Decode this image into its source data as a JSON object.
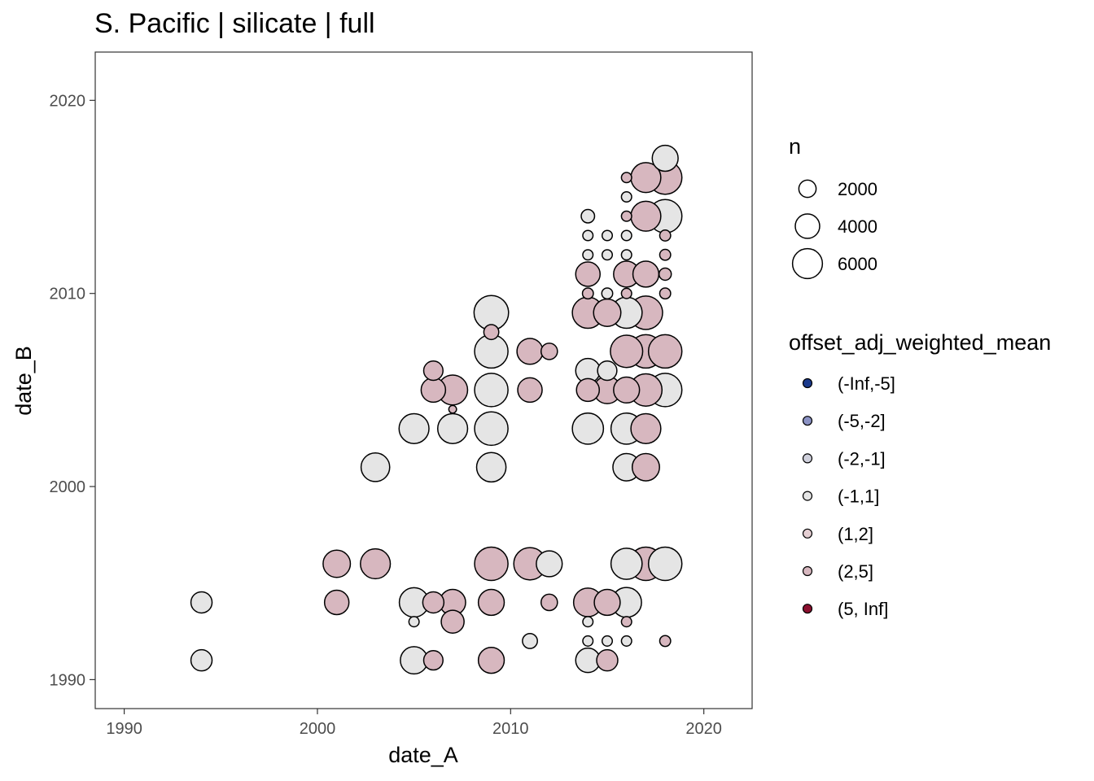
{
  "chart_data": {
    "type": "scatter",
    "title": "S. Pacific | silicate | full",
    "xlabel": "date_A",
    "ylabel": "date_B",
    "xlim": [
      1988.5,
      2022.5
    ],
    "ylim": [
      1988.5,
      2022.5
    ],
    "x_ticks": [
      1990,
      2000,
      2010,
      2020
    ],
    "y_ticks": [
      1990,
      2000,
      2010,
      2020
    ],
    "x_tick_labels": [
      "1990",
      "2000",
      "2010",
      "2020"
    ],
    "y_tick_labels": [
      "1990",
      "2000",
      "2010",
      "2020"
    ],
    "grid": false,
    "legend_size": {
      "title": "n",
      "entries": [
        {
          "label": "2000",
          "n": 2000
        },
        {
          "label": "4000",
          "n": 4000
        },
        {
          "label": "6000",
          "n": 6000
        }
      ]
    },
    "legend_color": {
      "title": "offset_adj_weighted_mean",
      "entries": [
        {
          "label": "(-Inf,-5]",
          "color": "#1b3a8c"
        },
        {
          "label": "(-5,-2]",
          "color": "#8b92c4"
        },
        {
          "label": "(-2,-1]",
          "color": "#cfd0dc"
        },
        {
          "label": "(-1,1]",
          "color": "#e5e5e5"
        },
        {
          "label": "(1,2]",
          "color": "#e5cfd3"
        },
        {
          "label": "(2,5]",
          "color": "#d7b7bf"
        },
        {
          "label": "(5, Inf]",
          "color": "#8b0f2f"
        }
      ]
    },
    "points": [
      {
        "x": 1994,
        "y": 1994,
        "n": 3000,
        "bin": "(-1,1]"
      },
      {
        "x": 1994,
        "y": 1991,
        "n": 3000,
        "bin": "(-1,1]"
      },
      {
        "x": 2001,
        "y": 1996,
        "n": 5000,
        "bin": "(2,5]"
      },
      {
        "x": 2001,
        "y": 1994,
        "n": 4000,
        "bin": "(2,5]"
      },
      {
        "x": 2003,
        "y": 1996,
        "n": 6000,
        "bin": "(2,5]"
      },
      {
        "x": 2003,
        "y": 2001,
        "n": 5500,
        "bin": "(-1,1]"
      },
      {
        "x": 2005,
        "y": 2003,
        "n": 6000,
        "bin": "(-1,1]"
      },
      {
        "x": 2005,
        "y": 1994,
        "n": 5800,
        "bin": "(-1,1]"
      },
      {
        "x": 2005,
        "y": 1993,
        "n": 700,
        "bin": "(-1,1]"
      },
      {
        "x": 2005,
        "y": 1991,
        "n": 5000,
        "bin": "(-1,1]"
      },
      {
        "x": 2006,
        "y": 2006,
        "n": 2500,
        "bin": "(2,5]"
      },
      {
        "x": 2006,
        "y": 2005,
        "n": 4000,
        "bin": "(2,5]"
      },
      {
        "x": 2006,
        "y": 1994,
        "n": 3000,
        "bin": "(2,5]"
      },
      {
        "x": 2006,
        "y": 1991,
        "n": 2500,
        "bin": "(2,5]"
      },
      {
        "x": 2007,
        "y": 2005,
        "n": 6000,
        "bin": "(2,5]"
      },
      {
        "x": 2007,
        "y": 2004,
        "n": 400,
        "bin": "(2,5]"
      },
      {
        "x": 2007,
        "y": 2003,
        "n": 6000,
        "bin": "(-1,1]"
      },
      {
        "x": 2007,
        "y": 1994,
        "n": 4500,
        "bin": "(2,5]"
      },
      {
        "x": 2007,
        "y": 1993,
        "n": 3500,
        "bin": "(2,5]"
      },
      {
        "x": 2009,
        "y": 2009,
        "n": 8000,
        "bin": "(-1,1]"
      },
      {
        "x": 2009,
        "y": 2008,
        "n": 1500,
        "bin": "(2,5]"
      },
      {
        "x": 2009,
        "y": 2007,
        "n": 7500,
        "bin": "(-1,1]"
      },
      {
        "x": 2009,
        "y": 2005,
        "n": 7500,
        "bin": "(-1,1]"
      },
      {
        "x": 2009,
        "y": 2003,
        "n": 7500,
        "bin": "(-1,1]"
      },
      {
        "x": 2009,
        "y": 2001,
        "n": 5800,
        "bin": "(-1,1]"
      },
      {
        "x": 2009,
        "y": 1996,
        "n": 7500,
        "bin": "(2,5]"
      },
      {
        "x": 2009,
        "y": 1994,
        "n": 4500,
        "bin": "(2,5]"
      },
      {
        "x": 2009,
        "y": 1991,
        "n": 4500,
        "bin": "(2,5]"
      },
      {
        "x": 2011,
        "y": 2007,
        "n": 4500,
        "bin": "(2,5]"
      },
      {
        "x": 2011,
        "y": 2005,
        "n": 4000,
        "bin": "(2,5]"
      },
      {
        "x": 2011,
        "y": 1996,
        "n": 7000,
        "bin": "(2,5]"
      },
      {
        "x": 2011,
        "y": 1992,
        "n": 1500,
        "bin": "(-1,1]"
      },
      {
        "x": 2012,
        "y": 2007,
        "n": 1800,
        "bin": "(2,5]"
      },
      {
        "x": 2012,
        "y": 1996,
        "n": 4500,
        "bin": "(-1,1]"
      },
      {
        "x": 2012,
        "y": 1994,
        "n": 1800,
        "bin": "(2,5]"
      },
      {
        "x": 2014,
        "y": 2014,
        "n": 1200,
        "bin": "(-1,1]"
      },
      {
        "x": 2014,
        "y": 2013,
        "n": 700,
        "bin": "(-1,1]"
      },
      {
        "x": 2014,
        "y": 2012,
        "n": 700,
        "bin": "(-1,1]"
      },
      {
        "x": 2014,
        "y": 2011,
        "n": 4000,
        "bin": "(2,5]"
      },
      {
        "x": 2014,
        "y": 2010,
        "n": 800,
        "bin": "(2,5]"
      },
      {
        "x": 2014,
        "y": 2009,
        "n": 6500,
        "bin": "(2,5]"
      },
      {
        "x": 2014,
        "y": 2006,
        "n": 4000,
        "bin": "(-1,1]"
      },
      {
        "x": 2014,
        "y": 2005,
        "n": 3500,
        "bin": "(2,5]"
      },
      {
        "x": 2014,
        "y": 2003,
        "n": 6500,
        "bin": "(-1,1]"
      },
      {
        "x": 2014,
        "y": 1994,
        "n": 5500,
        "bin": "(2,5]"
      },
      {
        "x": 2014,
        "y": 1993,
        "n": 700,
        "bin": "(-1,1]"
      },
      {
        "x": 2014,
        "y": 1992,
        "n": 700,
        "bin": "(-1,1]"
      },
      {
        "x": 2014,
        "y": 1991,
        "n": 4000,
        "bin": "(-1,1]"
      },
      {
        "x": 2015,
        "y": 2013,
        "n": 700,
        "bin": "(-1,1]"
      },
      {
        "x": 2015,
        "y": 2012,
        "n": 700,
        "bin": "(-1,1]"
      },
      {
        "x": 2015,
        "y": 2010,
        "n": 800,
        "bin": "(-1,1]"
      },
      {
        "x": 2015,
        "y": 2009,
        "n": 5000,
        "bin": "(2,5]"
      },
      {
        "x": 2015,
        "y": 2006,
        "n": 2500,
        "bin": "(-1,1]"
      },
      {
        "x": 2015,
        "y": 2005,
        "n": 5000,
        "bin": "(2,5]"
      },
      {
        "x": 2015,
        "y": 1994,
        "n": 4500,
        "bin": "(2,5]"
      },
      {
        "x": 2015,
        "y": 1992,
        "n": 700,
        "bin": "(-1,1]"
      },
      {
        "x": 2015,
        "y": 1991,
        "n": 3000,
        "bin": "(2,5]"
      },
      {
        "x": 2016,
        "y": 2016,
        "n": 700,
        "bin": "(2,5]"
      },
      {
        "x": 2016,
        "y": 2015,
        "n": 700,
        "bin": "(-1,1]"
      },
      {
        "x": 2016,
        "y": 2014,
        "n": 700,
        "bin": "(2,5]"
      },
      {
        "x": 2016,
        "y": 2013,
        "n": 700,
        "bin": "(-1,1]"
      },
      {
        "x": 2016,
        "y": 2012,
        "n": 700,
        "bin": "(-1,1]"
      },
      {
        "x": 2016,
        "y": 2011,
        "n": 4500,
        "bin": "(2,5]"
      },
      {
        "x": 2016,
        "y": 2010,
        "n": 700,
        "bin": "(2,5]"
      },
      {
        "x": 2016,
        "y": 2009,
        "n": 6500,
        "bin": "(-1,1]"
      },
      {
        "x": 2016,
        "y": 2007,
        "n": 7000,
        "bin": "(2,5]"
      },
      {
        "x": 2016,
        "y": 2005,
        "n": 4500,
        "bin": "(2,5]"
      },
      {
        "x": 2016,
        "y": 2003,
        "n": 6500,
        "bin": "(-1,1]"
      },
      {
        "x": 2016,
        "y": 2001,
        "n": 5000,
        "bin": "(-1,1]"
      },
      {
        "x": 2016,
        "y": 1996,
        "n": 6500,
        "bin": "(-1,1]"
      },
      {
        "x": 2016,
        "y": 1994,
        "n": 6000,
        "bin": "(-1,1]"
      },
      {
        "x": 2016,
        "y": 1993,
        "n": 700,
        "bin": "(2,5]"
      },
      {
        "x": 2016,
        "y": 1992,
        "n": 700,
        "bin": "(-1,1]"
      },
      {
        "x": 2017,
        "y": 2016,
        "n": 6000,
        "bin": "(2,5]"
      },
      {
        "x": 2017,
        "y": 2014,
        "n": 6000,
        "bin": "(2,5]"
      },
      {
        "x": 2017,
        "y": 2011,
        "n": 4500,
        "bin": "(2,5]"
      },
      {
        "x": 2017,
        "y": 2009,
        "n": 7500,
        "bin": "(2,5]"
      },
      {
        "x": 2017,
        "y": 2007,
        "n": 7500,
        "bin": "(2,5]"
      },
      {
        "x": 2017,
        "y": 2005,
        "n": 7000,
        "bin": "(2,5]"
      },
      {
        "x": 2017,
        "y": 2003,
        "n": 6000,
        "bin": "(2,5]"
      },
      {
        "x": 2017,
        "y": 2001,
        "n": 5000,
        "bin": "(2,5]"
      },
      {
        "x": 2017,
        "y": 1996,
        "n": 7500,
        "bin": "(2,5]"
      },
      {
        "x": 2018,
        "y": 2017,
        "n": 4500,
        "bin": "(-1,1]"
      },
      {
        "x": 2018,
        "y": 2016,
        "n": 7500,
        "bin": "(2,5]"
      },
      {
        "x": 2018,
        "y": 2014,
        "n": 7500,
        "bin": "(-1,1]"
      },
      {
        "x": 2018,
        "y": 2013,
        "n": 800,
        "bin": "(2,5]"
      },
      {
        "x": 2018,
        "y": 2012,
        "n": 800,
        "bin": "(2,5]"
      },
      {
        "x": 2018,
        "y": 2011,
        "n": 1000,
        "bin": "(2,5]"
      },
      {
        "x": 2018,
        "y": 2010,
        "n": 800,
        "bin": "(2,5]"
      },
      {
        "x": 2018,
        "y": 2007,
        "n": 7500,
        "bin": "(2,5]"
      },
      {
        "x": 2018,
        "y": 2005,
        "n": 7500,
        "bin": "(-1,1]"
      },
      {
        "x": 2018,
        "y": 1996,
        "n": 7500,
        "bin": "(-1,1]"
      },
      {
        "x": 2018,
        "y": 1992,
        "n": 800,
        "bin": "(2,5]"
      }
    ]
  }
}
